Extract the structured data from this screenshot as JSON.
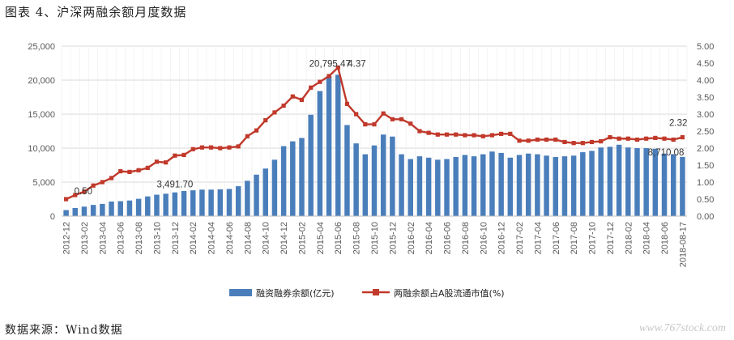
{
  "header": {
    "title": "图表 4、沪深两融余额月度数据"
  },
  "footer": {
    "source": "数据来源：Wind数据",
    "watermark": "www.767stock.com"
  },
  "colors": {
    "bar": "#4a7ebb",
    "line": "#c0392b",
    "marker": "#c0392b"
  },
  "chart_data": {
    "type": "bar",
    "title": "",
    "x": [
      "2012-12",
      "2013-01",
      "2013-02",
      "2013-03",
      "2013-04",
      "2013-05",
      "2013-06",
      "2013-07",
      "2013-08",
      "2013-09",
      "2013-10",
      "2013-11",
      "2013-12",
      "2014-01",
      "2014-02",
      "2014-03",
      "2014-04",
      "2014-05",
      "2014-06",
      "2014-07",
      "2014-08",
      "2014-09",
      "2014-10",
      "2014-11",
      "2014-12",
      "2015-01",
      "2015-02",
      "2015-03",
      "2015-04",
      "2015-05",
      "2015-06",
      "2015-07",
      "2015-08",
      "2015-09",
      "2015-10",
      "2015-11",
      "2015-12",
      "2016-01",
      "2016-02",
      "2016-03",
      "2016-04",
      "2016-05",
      "2016-06",
      "2016-07",
      "2016-08",
      "2016-09",
      "2016-10",
      "2016-11",
      "2016-12",
      "2017-01",
      "2017-02",
      "2017-03",
      "2017-04",
      "2017-05",
      "2017-06",
      "2017-07",
      "2017-08",
      "2017-09",
      "2017-10",
      "2017-11",
      "2017-12",
      "2018-01",
      "2018-02",
      "2018-03",
      "2018-04",
      "2018-05",
      "2018-06",
      "2018-07",
      "2018-08-17"
    ],
    "x_tick_labels": [
      "2012-12",
      "2013-02",
      "2013-04",
      "2013-06",
      "2013-08",
      "2013-10",
      "2013-12",
      "2014-02",
      "2014-04",
      "2014-06",
      "2014-08",
      "2014-10",
      "2014-12",
      "2015-02",
      "2015-04",
      "2015-06",
      "2015-08",
      "2015-10",
      "2015-12",
      "2016-02",
      "2016-04",
      "2016-06",
      "2016-08",
      "2016-10",
      "2016-12",
      "2017-02",
      "2017-04",
      "2017-06",
      "2017-08",
      "2017-10",
      "2017-12",
      "2018-02",
      "2018-04",
      "2018-06",
      "2018-08-17"
    ],
    "series": [
      {
        "name": "融资融券余额(亿元)",
        "type": "bar",
        "axis": "left",
        "values": [
          895,
          1200,
          1400,
          1650,
          1800,
          2150,
          2200,
          2300,
          2550,
          2900,
          3150,
          3300,
          3491.7,
          3700,
          3800,
          3900,
          3900,
          3950,
          4000,
          4400,
          5200,
          6100,
          7000,
          8300,
          10300,
          11000,
          11500,
          14900,
          18400,
          20600,
          20795.47,
          13400,
          10700,
          9100,
          10400,
          12000,
          11700,
          9100,
          8400,
          8800,
          8600,
          8300,
          8400,
          8700,
          9000,
          8800,
          9100,
          9500,
          9300,
          8600,
          9000,
          9200,
          9100,
          8900,
          8700,
          8800,
          8900,
          9400,
          9600,
          10100,
          10200,
          10500,
          10100,
          10000,
          10000,
          9900,
          9200,
          9100,
          8710.08
        ]
      },
      {
        "name": "两融余额占A股流通市值(%)",
        "type": "line",
        "axis": "right",
        "values": [
          0.5,
          0.62,
          0.72,
          0.9,
          1.0,
          1.12,
          1.32,
          1.3,
          1.35,
          1.42,
          1.6,
          1.58,
          1.78,
          1.8,
          1.97,
          2.02,
          2.02,
          2.0,
          2.02,
          2.05,
          2.35,
          2.52,
          2.82,
          3.05,
          3.25,
          3.52,
          3.42,
          3.78,
          3.95,
          4.12,
          4.37,
          3.3,
          3.0,
          2.7,
          2.7,
          3.02,
          2.85,
          2.85,
          2.72,
          2.5,
          2.45,
          2.4,
          2.4,
          2.4,
          2.38,
          2.38,
          2.35,
          2.38,
          2.42,
          2.42,
          2.22,
          2.22,
          2.25,
          2.25,
          2.25,
          2.18,
          2.15,
          2.15,
          2.18,
          2.2,
          2.32,
          2.28,
          2.28,
          2.25,
          2.28,
          2.3,
          2.28,
          2.25,
          2.32
        ]
      }
    ],
    "data_labels": [
      {
        "series": 0,
        "index": 30,
        "text": "20,795.47"
      },
      {
        "series": 0,
        "index": 12,
        "text": "3,491.70"
      },
      {
        "series": 0,
        "index": 68,
        "text": "8,710.08"
      },
      {
        "series": 1,
        "index": 0,
        "text": "0.50"
      },
      {
        "series": 1,
        "index": 30,
        "text": "4.37"
      },
      {
        "series": 1,
        "index": 68,
        "text": "2.32"
      }
    ],
    "y_left": {
      "min": 0,
      "max": 25000,
      "step": 5000,
      "labels": [
        "0",
        "5,000",
        "10,000",
        "15,000",
        "20,000",
        "25,000"
      ]
    },
    "y_right": {
      "min": 0,
      "max": 5,
      "step": 0.5,
      "labels": [
        "0.00",
        "0.50",
        "1.00",
        "1.50",
        "2.00",
        "2.50",
        "3.00",
        "3.50",
        "4.00",
        "4.50",
        "5.00"
      ]
    },
    "grid": true,
    "legend_position": "bottom"
  }
}
